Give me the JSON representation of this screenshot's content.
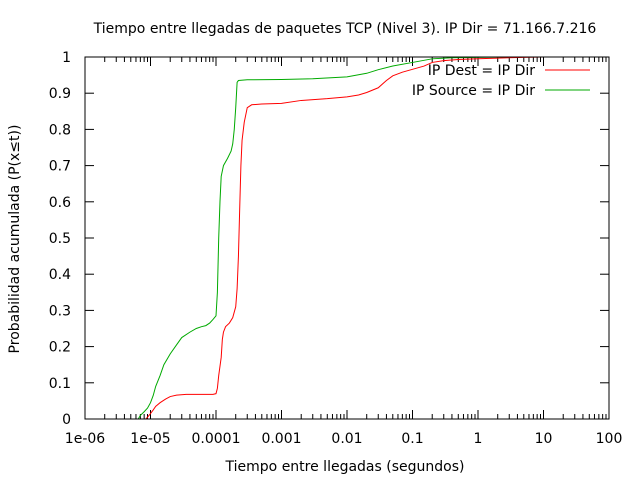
{
  "chart_data": {
    "type": "line",
    "title": "Tiempo entre llegadas de paquetes TCP (Nivel 3). IP Dir = 71.166.7.216",
    "xlabel": "Tiempo entre llegadas (segundos)",
    "ylabel": "Probabilidad acumulada (P(x≤t))",
    "xscale": "log",
    "xlim": [
      1e-06,
      100
    ],
    "ylim": [
      0,
      1
    ],
    "x_ticks": [
      {
        "value": 1e-06,
        "label": "1e-06"
      },
      {
        "value": 1e-05,
        "label": "1e-05"
      },
      {
        "value": 0.0001,
        "label": "0.0001"
      },
      {
        "value": 0.001,
        "label": "0.001"
      },
      {
        "value": 0.01,
        "label": "0.01"
      },
      {
        "value": 0.1,
        "label": "0.1"
      },
      {
        "value": 1,
        "label": "1"
      },
      {
        "value": 10,
        "label": "10"
      },
      {
        "value": 100,
        "label": "100"
      }
    ],
    "y_ticks": [
      {
        "value": 0,
        "label": "0"
      },
      {
        "value": 0.1,
        "label": "0.1"
      },
      {
        "value": 0.2,
        "label": "0.2"
      },
      {
        "value": 0.3,
        "label": "0.3"
      },
      {
        "value": 0.4,
        "label": "0.4"
      },
      {
        "value": 0.5,
        "label": "0.5"
      },
      {
        "value": 0.6,
        "label": "0.6"
      },
      {
        "value": 0.7,
        "label": "0.7"
      },
      {
        "value": 0.8,
        "label": "0.8"
      },
      {
        "value": 0.9,
        "label": "0.9"
      },
      {
        "value": 1,
        "label": "1"
      }
    ],
    "legend_position": "top-right",
    "grid": false,
    "series": [
      {
        "name": "IP Dest = IP Dir",
        "color": "#ff0000",
        "points": [
          [
            8.5e-06,
            0
          ],
          [
            9e-06,
            0.005
          ],
          [
            1e-05,
            0.015
          ],
          [
            1.1e-05,
            0.025
          ],
          [
            1.2e-05,
            0.035
          ],
          [
            1.4e-05,
            0.045
          ],
          [
            1.7e-05,
            0.055
          ],
          [
            2e-05,
            0.062
          ],
          [
            2.5e-05,
            0.066
          ],
          [
            3.5e-05,
            0.068
          ],
          [
            6e-05,
            0.068
          ],
          [
            9e-05,
            0.068
          ],
          [
            0.0001,
            0.07
          ],
          [
            0.000105,
            0.085
          ],
          [
            0.00011,
            0.12
          ],
          [
            0.00012,
            0.17
          ],
          [
            0.000125,
            0.22
          ],
          [
            0.00013,
            0.24
          ],
          [
            0.00014,
            0.255
          ],
          [
            0.00016,
            0.265
          ],
          [
            0.00018,
            0.28
          ],
          [
            0.0002,
            0.31
          ],
          [
            0.00021,
            0.36
          ],
          [
            0.00022,
            0.45
          ],
          [
            0.00023,
            0.58
          ],
          [
            0.00024,
            0.7
          ],
          [
            0.00025,
            0.77
          ],
          [
            0.00027,
            0.82
          ],
          [
            0.0003,
            0.86
          ],
          [
            0.00035,
            0.868
          ],
          [
            0.0005,
            0.87
          ],
          [
            0.001,
            0.872
          ],
          [
            0.002,
            0.88
          ],
          [
            0.005,
            0.885
          ],
          [
            0.01,
            0.89
          ],
          [
            0.015,
            0.895
          ],
          [
            0.02,
            0.902
          ],
          [
            0.03,
            0.915
          ],
          [
            0.04,
            0.935
          ],
          [
            0.05,
            0.948
          ],
          [
            0.07,
            0.958
          ],
          [
            0.1,
            0.966
          ],
          [
            0.15,
            0.975
          ],
          [
            0.2,
            0.985
          ],
          [
            0.3,
            0.99
          ],
          [
            0.5,
            0.993
          ],
          [
            1,
            0.995
          ],
          [
            2,
            0.997
          ],
          [
            5,
            0.999
          ],
          [
            10,
            1
          ]
        ]
      },
      {
        "name": "IP Source = IP Dir",
        "color": "#00aa00",
        "points": [
          [
            6.5e-06,
            0
          ],
          [
            7e-06,
            0.01
          ],
          [
            8e-06,
            0.02
          ],
          [
            9e-06,
            0.03
          ],
          [
            1e-05,
            0.045
          ],
          [
            1.1e-05,
            0.065
          ],
          [
            1.2e-05,
            0.09
          ],
          [
            1.4e-05,
            0.12
          ],
          [
            1.6e-05,
            0.15
          ],
          [
            2e-05,
            0.18
          ],
          [
            2.5e-05,
            0.205
          ],
          [
            3e-05,
            0.225
          ],
          [
            4e-05,
            0.24
          ],
          [
            5e-05,
            0.25
          ],
          [
            6e-05,
            0.255
          ],
          [
            7e-05,
            0.258
          ],
          [
            8e-05,
            0.265
          ],
          [
            9e-05,
            0.275
          ],
          [
            0.0001,
            0.285
          ],
          [
            0.000105,
            0.35
          ],
          [
            0.00011,
            0.5
          ],
          [
            0.000115,
            0.6
          ],
          [
            0.00012,
            0.67
          ],
          [
            0.00013,
            0.7
          ],
          [
            0.00015,
            0.72
          ],
          [
            0.00017,
            0.74
          ],
          [
            0.00018,
            0.76
          ],
          [
            0.00019,
            0.8
          ],
          [
            0.0002,
            0.86
          ],
          [
            0.00021,
            0.93
          ],
          [
            0.00022,
            0.935
          ],
          [
            0.0003,
            0.937
          ],
          [
            0.001,
            0.938
          ],
          [
            0.003,
            0.94
          ],
          [
            0.01,
            0.945
          ],
          [
            0.02,
            0.955
          ],
          [
            0.03,
            0.965
          ],
          [
            0.05,
            0.975
          ],
          [
            0.1,
            0.985
          ],
          [
            0.2,
            0.995
          ],
          [
            0.4,
            0.998
          ],
          [
            1,
            0.999
          ],
          [
            3,
            1
          ],
          [
            10,
            1
          ]
        ]
      }
    ]
  }
}
